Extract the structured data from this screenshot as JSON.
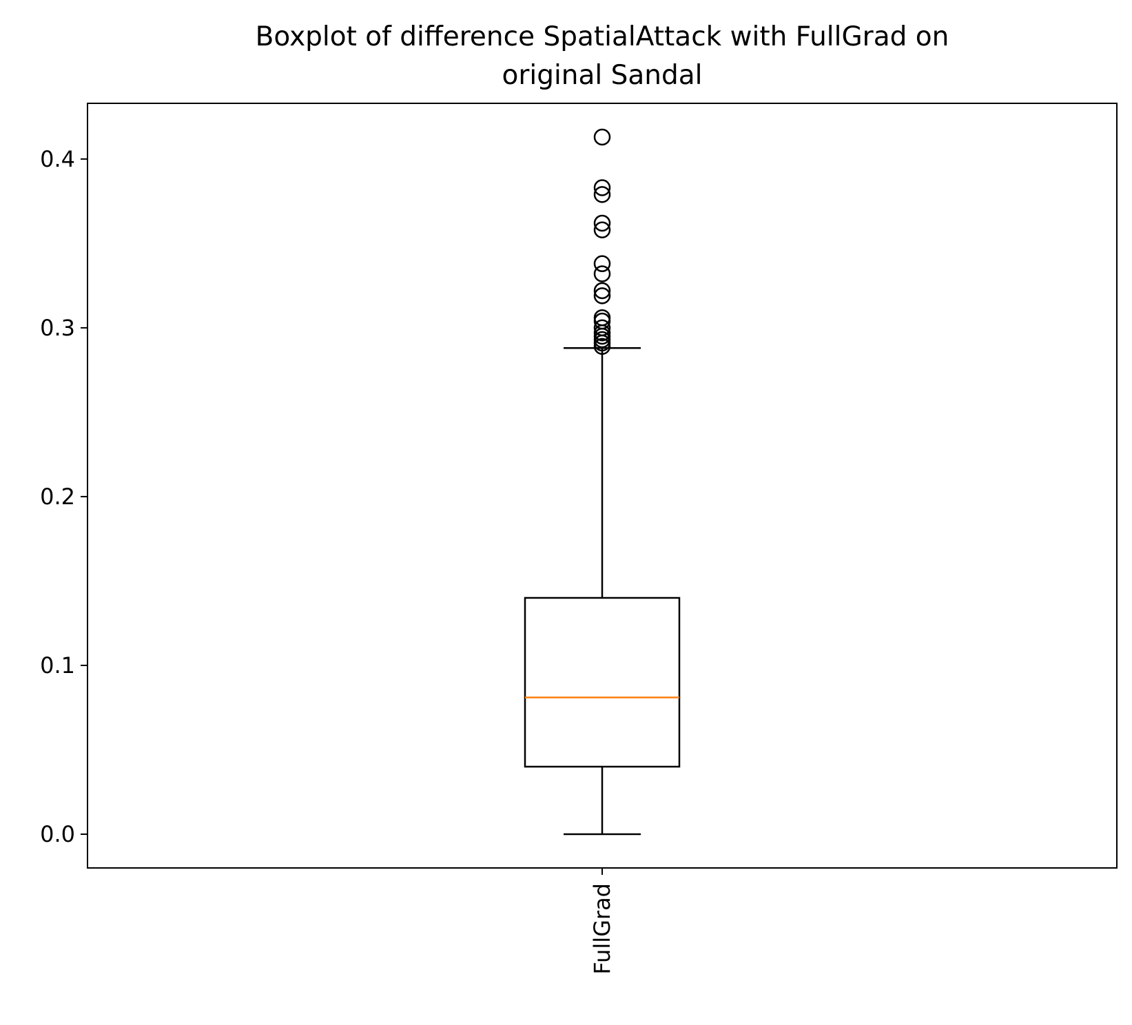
{
  "chart_data": {
    "type": "boxplot",
    "title": "Boxplot of difference SpatialAttack with FullGrad on original Sandal",
    "title_lines": [
      "Boxplot of difference SpatialAttack with FullGrad on",
      "original Sandal"
    ],
    "xlabel": "",
    "ylabel": "",
    "categories": [
      "FullGrad"
    ],
    "ylim": [
      -0.02,
      0.433
    ],
    "yticks": [
      0.0,
      0.1,
      0.2,
      0.3,
      0.4
    ],
    "ytick_labels": [
      "0.0",
      "0.1",
      "0.2",
      "0.3",
      "0.4"
    ],
    "grid": false,
    "series": [
      {
        "category": "FullGrad",
        "whisker_low": 0.0,
        "q1": 0.04,
        "median": 0.081,
        "q3": 0.14,
        "whisker_high": 0.288,
        "outliers": [
          0.413,
          0.383,
          0.379,
          0.362,
          0.358,
          0.338,
          0.332,
          0.322,
          0.319,
          0.306,
          0.304,
          0.3,
          0.297,
          0.295,
          0.293,
          0.291,
          0.289
        ]
      }
    ],
    "colors": {
      "box": "#000000",
      "median": "#ff7f0e",
      "whisker": "#000000",
      "outlier": "#000000"
    }
  }
}
